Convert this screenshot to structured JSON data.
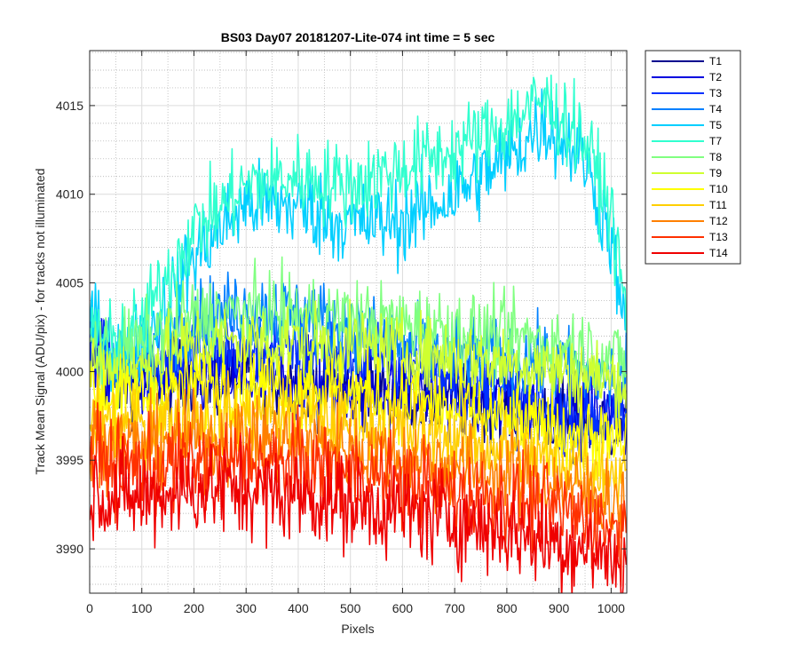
{
  "chart_data": {
    "type": "line",
    "title": "BS03 Day07 20181207-Lite-074 int time = 5 sec",
    "xlabel": "Pixels",
    "ylabel": "Track Mean Signal (ADU/pix) - for tracks not illuminated",
    "xlim": [
      0,
      1030
    ],
    "ylim": [
      3987.5,
      4018.1
    ],
    "xticks": [
      0,
      100,
      200,
      300,
      400,
      500,
      600,
      700,
      800,
      900,
      1000
    ],
    "yticks": [
      3990,
      3995,
      4000,
      4005,
      4010,
      4015
    ],
    "xtick_labels": [
      "0",
      "100",
      "200",
      "300",
      "400",
      "500",
      "600",
      "700",
      "800",
      "900",
      "1000"
    ],
    "ytick_labels": [
      "3990",
      "3995",
      "4000",
      "4005",
      "4010",
      "4015"
    ],
    "grid": true,
    "legend_position": "outside-top-right",
    "profile_x": [
      0,
      40,
      100,
      150,
      200,
      300,
      400,
      500,
      600,
      700,
      800,
      870,
      950,
      1000,
      1030
    ],
    "series": [
      {
        "name": "T1",
        "color": "#00008f",
        "noise": 1.2,
        "values": [
          4001,
          3999.5,
          3999.5,
          3999.5,
          3999.7,
          3999.6,
          3999.4,
          3999.2,
          3998.8,
          3998.4,
          3998,
          3997.6,
          3997.3,
          3997,
          3996.8
        ]
      },
      {
        "name": "T2",
        "color": "#0000df",
        "noise": 1.2,
        "values": [
          4001.5,
          4000,
          3999.6,
          3999.5,
          3999.5,
          3999.6,
          3999.4,
          3999.2,
          3998.9,
          3998.5,
          3998.2,
          3998,
          3997.6,
          3997.3,
          3997
        ]
      },
      {
        "name": "T3",
        "color": "#0030ff",
        "noise": 1.2,
        "values": [
          4002,
          4000.5,
          4000.2,
          4000.6,
          4001,
          4001.3,
          4001.2,
          4001,
          4000.5,
          3999.7,
          3998.6,
          3997.8,
          3997.5,
          3997.3,
          3997.1
        ]
      },
      {
        "name": "T4",
        "color": "#0080ff",
        "noise": 1.2,
        "values": [
          4003,
          4001,
          4000.8,
          4002,
          4003,
          4003.5,
          4003.3,
          4002.5,
          4001.5,
          4001,
          4000.8,
          4000.5,
          4000,
          3999.6,
          3999.3
        ]
      },
      {
        "name": "T5",
        "color": "#00cfff",
        "noise": 1.3,
        "values": [
          4003.5,
          4001,
          4001.5,
          4004,
          4006.5,
          4009.5,
          4009.3,
          4008.3,
          4008.5,
          4010,
          4012,
          4014,
          4012,
          4007.5,
          4001.5
        ]
      },
      {
        "name": "T7",
        "color": "#30ffcf",
        "noise": 1.3,
        "values": [
          4003,
          4001.5,
          4002.5,
          4005.5,
          4008,
          4010.5,
          4011,
          4010.5,
          4011.5,
          4012.5,
          4014,
          4015.3,
          4013,
          4009,
          4003
        ]
      },
      {
        "name": "T8",
        "color": "#80ff80",
        "noise": 1.2,
        "values": [
          4001.5,
          4001,
          4001.5,
          4002.5,
          4003,
          4003.3,
          4003.2,
          4003,
          4002.7,
          4002.4,
          4002,
          4001.7,
          4001.3,
          4000.8,
          4000.4
        ]
      },
      {
        "name": "T9",
        "color": "#cfff30",
        "noise": 1.2,
        "values": [
          4000.5,
          4000,
          4000.2,
          4001,
          4001.5,
          4001.7,
          4001.6,
          4001.4,
          4001.1,
          4000.8,
          4000.5,
          4000.2,
          3999.8,
          3999.5,
          3999.2
        ]
      },
      {
        "name": "T10",
        "color": "#ffff00",
        "noise": 1.2,
        "values": [
          3999,
          3998.5,
          3998.6,
          3999,
          3999.3,
          3999.3,
          3999.2,
          3998.9,
          3998.4,
          3997.8,
          3997.2,
          3996.8,
          3996.4,
          3996,
          3995.7
        ]
      },
      {
        "name": "T11",
        "color": "#ffcf00",
        "noise": 1.2,
        "values": [
          3997.5,
          3997,
          3997,
          3997.3,
          3997.5,
          3997.5,
          3997.4,
          3997.1,
          3996.7,
          3996.1,
          3995.6,
          3995.2,
          3994.8,
          3994.4,
          3994
        ]
      },
      {
        "name": "T12",
        "color": "#ff8000",
        "noise": 1.3,
        "values": [
          3996.5,
          3996,
          3995.8,
          3996,
          3996.2,
          3996.2,
          3996,
          3995.7,
          3995.2,
          3994.7,
          3994.2,
          3993.7,
          3993.2,
          3992.8,
          3992.4
        ]
      },
      {
        "name": "T13",
        "color": "#ff3000",
        "noise": 1.4,
        "values": [
          3995.5,
          3994.8,
          3994.5,
          3994.7,
          3994.9,
          3994.9,
          3994.7,
          3994.3,
          3993.8,
          3993.3,
          3992.8,
          3992.3,
          3991.8,
          3991.3,
          3990.9
        ]
      },
      {
        "name": "T14",
        "color": "#ef0000",
        "noise": 1.5,
        "values": [
          3993.5,
          3993,
          3992.8,
          3993.2,
          3993.4,
          3993.3,
          3993,
          3992.6,
          3992.1,
          3991.6,
          3991,
          3990.5,
          3990,
          3989.5,
          3989.1
        ]
      }
    ]
  }
}
